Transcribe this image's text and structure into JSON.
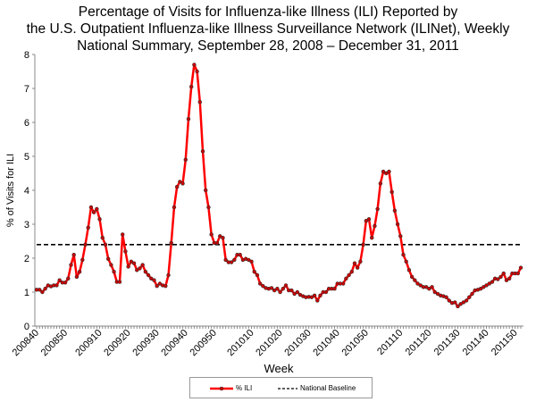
{
  "chart_data": {
    "type": "line",
    "title": "Percentage of Visits for Influenza-like Illness (ILI) Reported by the U.S. Outpatient Influenza-like Illness Surveillance Network (ILINet), Weekly National Summary, September 28, 2008 – December 31, 2011",
    "title_lines": [
      "Percentage of Visits for Influenza-like Illness (ILI) Reported by",
      "the U.S. Outpatient Influenza-like Illness Surveillance Network (ILINet), Weekly",
      "National Summary, September 28, 2008 – December 31, 2011"
    ],
    "xlabel": "Week",
    "ylabel": "% of Visits for ILI",
    "ylim": [
      0,
      8
    ],
    "yticks": [
      "0",
      "1",
      "2",
      "3",
      "4",
      "5",
      "6",
      "7",
      "8"
    ],
    "xticks": [
      "200840",
      "200850",
      "200910",
      "200920",
      "200930",
      "200940",
      "200950",
      "201010",
      "201020",
      "201030",
      "201040",
      "201050",
      "201110",
      "201120",
      "201130",
      "201140",
      "201150"
    ],
    "grid": false,
    "legend_placement": "bottom",
    "x": [
      "200840",
      "200841",
      "200842",
      "200843",
      "200844",
      "200845",
      "200846",
      "200847",
      "200848",
      "200849",
      "200850",
      "200851",
      "200852",
      "200901",
      "200902",
      "200903",
      "200904",
      "200905",
      "200906",
      "200907",
      "200908",
      "200909",
      "200910",
      "200911",
      "200912",
      "200913",
      "200914",
      "200915",
      "200916",
      "200917",
      "200918",
      "200919",
      "200920",
      "200921",
      "200922",
      "200923",
      "200924",
      "200925",
      "200926",
      "200927",
      "200928",
      "200929",
      "200930",
      "200931",
      "200932",
      "200933",
      "200934",
      "200935",
      "200936",
      "200937",
      "200938",
      "200939",
      "200940",
      "200941",
      "200942",
      "200943",
      "200944",
      "200945",
      "200946",
      "200947",
      "200948",
      "200949",
      "200950",
      "200951",
      "200952",
      "200953",
      "201001",
      "201002",
      "201003",
      "201004",
      "201005",
      "201006",
      "201007",
      "201008",
      "201009",
      "201010",
      "201011",
      "201012",
      "201013",
      "201014",
      "201015",
      "201016",
      "201017",
      "201018",
      "201019",
      "201020",
      "201021",
      "201022",
      "201023",
      "201024",
      "201025",
      "201026",
      "201027",
      "201028",
      "201029",
      "201030",
      "201031",
      "201032",
      "201033",
      "201034",
      "201035",
      "201036",
      "201037",
      "201038",
      "201039",
      "201040",
      "201041",
      "201042",
      "201043",
      "201044",
      "201045",
      "201046",
      "201047",
      "201048",
      "201049",
      "201050",
      "201051",
      "201052",
      "201101",
      "201102",
      "201103",
      "201104",
      "201105",
      "201106",
      "201107",
      "201108",
      "201109",
      "201110",
      "201111",
      "201112",
      "201113",
      "201114",
      "201115",
      "201116",
      "201117",
      "201118",
      "201119",
      "201120",
      "201121",
      "201122",
      "201123",
      "201124",
      "201125",
      "201126",
      "201127",
      "201128",
      "201129",
      "201130",
      "201131",
      "201132",
      "201133",
      "201134",
      "201135",
      "201136",
      "201137",
      "201138",
      "201139",
      "201140",
      "201141",
      "201142",
      "201143",
      "201144",
      "201145",
      "201146",
      "201147",
      "201148",
      "201149",
      "201150",
      "201151",
      "201152"
    ],
    "series": [
      {
        "name": "% ILI",
        "color": "#ff0000",
        "marker_color": "#cc0000",
        "values": [
          1.07,
          1.07,
          1.0,
          1.1,
          1.2,
          1.17,
          1.2,
          1.2,
          1.35,
          1.28,
          1.28,
          1.4,
          1.8,
          2.1,
          1.45,
          1.6,
          1.95,
          2.4,
          2.9,
          3.5,
          3.35,
          3.45,
          3.15,
          2.6,
          2.4,
          1.98,
          1.8,
          1.6,
          1.3,
          1.3,
          2.7,
          2.2,
          1.75,
          1.9,
          1.85,
          1.65,
          1.7,
          1.8,
          1.6,
          1.5,
          1.4,
          1.35,
          1.18,
          1.25,
          1.2,
          1.18,
          1.5,
          2.45,
          3.5,
          4.1,
          4.25,
          4.2,
          4.9,
          6.1,
          7.05,
          7.7,
          7.5,
          6.6,
          5.15,
          4.0,
          3.5,
          2.7,
          2.45,
          2.45,
          2.65,
          2.6,
          1.95,
          1.88,
          1.88,
          1.95,
          2.1,
          2.1,
          1.95,
          1.98,
          1.95,
          1.9,
          1.6,
          1.5,
          1.25,
          1.18,
          1.12,
          1.1,
          1.12,
          1.05,
          1.1,
          1.0,
          1.1,
          1.2,
          1.05,
          1.05,
          0.95,
          1.0,
          0.92,
          0.88,
          0.85,
          0.86,
          0.85,
          0.9,
          0.75,
          0.9,
          1.0,
          1.0,
          1.1,
          1.1,
          1.1,
          1.25,
          1.25,
          1.25,
          1.4,
          1.5,
          1.6,
          1.85,
          1.72,
          1.9,
          2.4,
          3.1,
          3.15,
          2.6,
          2.95,
          3.45,
          4.2,
          4.55,
          4.5,
          4.55,
          3.95,
          3.4,
          3.0,
          2.65,
          2.1,
          1.9,
          1.65,
          1.45,
          1.35,
          1.25,
          1.2,
          1.15,
          1.15,
          1.1,
          1.15,
          1.0,
          0.95,
          0.9,
          0.88,
          0.85,
          0.75,
          0.68,
          0.7,
          0.58,
          0.65,
          0.7,
          0.75,
          0.85,
          0.95,
          1.05,
          1.07,
          1.1,
          1.15,
          1.2,
          1.25,
          1.3,
          1.4,
          1.38,
          1.45,
          1.55,
          1.35,
          1.4,
          1.55,
          1.55,
          1.55,
          1.72
        ]
      },
      {
        "name": "National Baseline",
        "color": "#000000",
        "style": "dashed",
        "value": 2.4
      }
    ]
  }
}
